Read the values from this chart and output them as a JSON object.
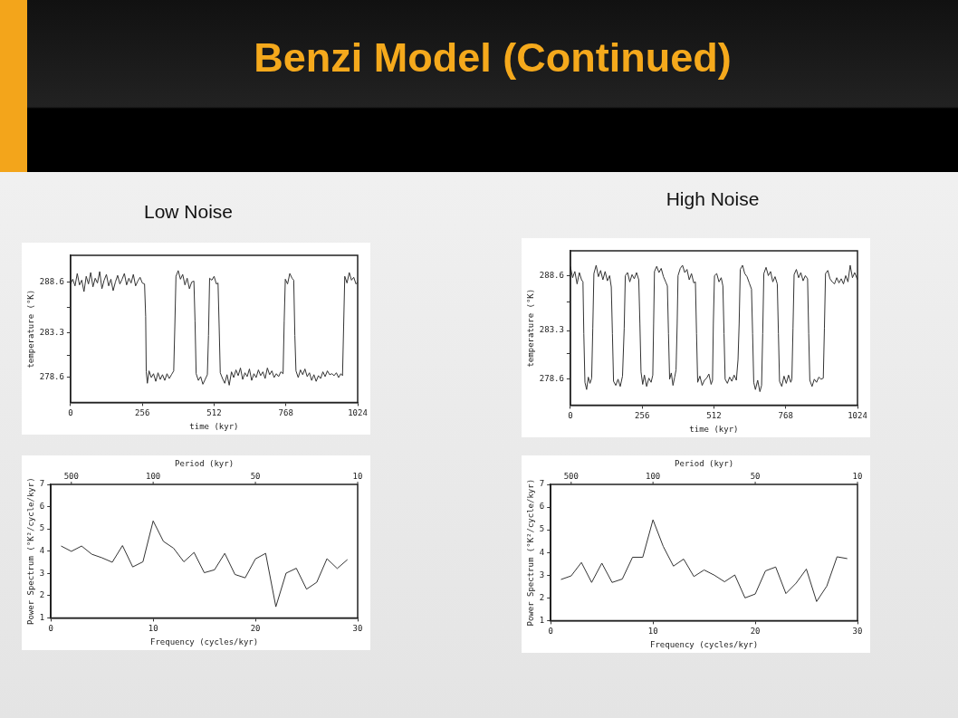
{
  "chart_data": [
    {
      "type": "line",
      "title": "Benzi Model (Continued)",
      "subtitle": "Low Noise",
      "xlabel": "time (kyr)",
      "ylabel": "temperature (°K)",
      "color": "#333333",
      "xlim": [
        0,
        1024
      ],
      "xticks": [
        0,
        256,
        512,
        768,
        1024
      ],
      "ylim": [
        276.0,
        291.4
      ],
      "yticks": [
        278.6,
        {
          "value": 280.95,
          "label": null
        },
        283.3,
        {
          "value": 285.95,
          "label": null
        },
        288.6
      ],
      "x": [
        0,
        8,
        16,
        24,
        32,
        40,
        48,
        56,
        64,
        72,
        80,
        88,
        96,
        104,
        112,
        120,
        128,
        136,
        144,
        152,
        160,
        168,
        176,
        184,
        192,
        200,
        208,
        216,
        224,
        232,
        240,
        248,
        256,
        264,
        268,
        270,
        274,
        280,
        288,
        296,
        304,
        312,
        320,
        328,
        336,
        344,
        352,
        360,
        368,
        372,
        376,
        384,
        392,
        400,
        408,
        416,
        424,
        432,
        440,
        444,
        448,
        456,
        464,
        472,
        480,
        488,
        492,
        496,
        504,
        512,
        520,
        526,
        530,
        534,
        542,
        550,
        558,
        566,
        574,
        582,
        590,
        598,
        606,
        614,
        622,
        630,
        638,
        646,
        654,
        662,
        670,
        678,
        686,
        694,
        702,
        710,
        718,
        726,
        734,
        742,
        750,
        758,
        762,
        766,
        774,
        782,
        790,
        796,
        800,
        804,
        812,
        820,
        828,
        836,
        844,
        852,
        860,
        868,
        876,
        884,
        892,
        900,
        908,
        916,
        924,
        932,
        940,
        948,
        956,
        964,
        970,
        974,
        978,
        986,
        994,
        1002,
        1010,
        1018,
        1024
      ],
      "values": [
        288.4,
        288.9,
        288.2,
        289.5,
        288.3,
        288.8,
        287.6,
        289.2,
        288.4,
        289.6,
        288.1,
        289.0,
        288.5,
        289.7,
        287.9,
        288.8,
        289.4,
        288.2,
        288.9,
        287.7,
        288.6,
        289.3,
        288.4,
        288.9,
        289.5,
        288.3,
        289.0,
        288.5,
        289.4,
        288.2,
        288.7,
        289.1,
        288.5,
        288.4,
        285.0,
        279.2,
        278.0,
        279.3,
        278.6,
        279.0,
        278.2,
        279.1,
        278.4,
        278.9,
        278.3,
        279.0,
        278.5,
        278.9,
        279.3,
        284.0,
        289.2,
        289.8,
        288.9,
        289.4,
        288.3,
        289.0,
        287.9,
        288.6,
        288.7,
        284.5,
        279.0,
        278.3,
        278.7,
        277.9,
        278.4,
        278.9,
        283.0,
        289.0,
        288.8,
        289.2,
        288.4,
        288.5,
        284.0,
        279.1,
        278.5,
        278.0,
        278.9,
        277.8,
        279.2,
        278.6,
        279.4,
        278.8,
        279.6,
        278.4,
        279.1,
        278.7,
        279.5,
        278.3,
        279.0,
        278.6,
        279.4,
        278.8,
        279.2,
        278.5,
        279.6,
        278.9,
        279.3,
        278.6,
        279.0,
        278.7,
        279.2,
        279.0,
        284.5,
        288.9,
        288.4,
        289.5,
        289.0,
        288.8,
        283.0,
        279.3,
        278.6,
        279.4,
        278.9,
        279.5,
        278.7,
        279.1,
        278.3,
        278.9,
        278.2,
        278.8,
        278.5,
        279.2,
        278.7,
        279.3,
        278.9,
        279.0,
        278.8,
        279.1,
        278.6,
        279.0,
        278.8,
        284.0,
        289.2,
        288.5,
        289.6,
        288.8,
        289.1,
        288.4,
        288.6
      ]
    },
    {
      "type": "line",
      "subtitle": "High Noise",
      "xlabel": "time (kyr)",
      "ylabel": "temperature (°K)",
      "color": "#333333",
      "xlim": [
        0,
        1024
      ],
      "xticks": [
        0,
        256,
        512,
        768,
        1024
      ],
      "ylim": [
        276.1,
        291.0
      ],
      "yticks": [
        278.6,
        {
          "value": 281.1,
          "label": null
        },
        283.3,
        {
          "value": 286.1,
          "label": null
        },
        288.6
      ],
      "x": [
        0,
        8,
        16,
        24,
        32,
        40,
        45,
        48,
        52,
        58,
        64,
        70,
        76,
        80,
        84,
        92,
        100,
        108,
        116,
        124,
        132,
        140,
        146,
        150,
        154,
        162,
        170,
        178,
        186,
        192,
        196,
        204,
        212,
        220,
        228,
        236,
        244,
        248,
        252,
        258,
        264,
        272,
        280,
        288,
        294,
        297,
        300,
        308,
        316,
        324,
        332,
        340,
        346,
        350,
        354,
        360,
        366,
        372,
        377,
        381,
        384,
        392,
        400,
        408,
        416,
        424,
        432,
        440,
        446,
        450,
        454,
        462,
        470,
        478,
        486,
        494,
        502,
        507,
        510,
        514,
        522,
        530,
        538,
        544,
        548,
        552,
        560,
        568,
        576,
        584,
        592,
        598,
        602,
        606,
        614,
        622,
        630,
        638,
        646,
        650,
        654,
        660,
        668,
        676,
        682,
        686,
        690,
        698,
        706,
        714,
        722,
        730,
        738,
        742,
        746,
        754,
        762,
        770,
        778,
        786,
        790,
        794,
        798,
        806,
        814,
        822,
        830,
        838,
        846,
        850,
        854,
        862,
        870,
        878,
        886,
        894,
        902,
        906,
        910,
        918,
        926,
        934,
        942,
        950,
        958,
        966,
        974,
        982,
        990,
        998,
        1006,
        1014,
        1024
      ],
      "values": [
        289.5,
        288.4,
        289.0,
        287.8,
        288.9,
        288.2,
        288.0,
        283.0,
        278.3,
        277.6,
        278.8,
        278.2,
        278.7,
        283.5,
        288.8,
        289.6,
        288.5,
        289.1,
        288.2,
        289.0,
        288.1,
        288.6,
        287.5,
        283.0,
        278.4,
        278.0,
        278.6,
        277.9,
        278.9,
        283.5,
        288.6,
        288.9,
        288.0,
        288.7,
        288.3,
        288.9,
        288.2,
        284.0,
        279.3,
        278.1,
        279.0,
        277.9,
        278.7,
        278.3,
        279.0,
        284.0,
        289.0,
        289.5,
        288.9,
        289.3,
        288.5,
        288.0,
        287.6,
        283.0,
        278.6,
        279.2,
        278.0,
        278.8,
        279.5,
        284.0,
        288.6,
        289.3,
        289.6,
        288.9,
        289.2,
        288.2,
        288.8,
        287.9,
        288.0,
        283.0,
        278.3,
        278.9,
        278.0,
        278.5,
        278.7,
        279.1,
        278.1,
        278.5,
        284.0,
        288.6,
        288.8,
        288.0,
        288.4,
        287.6,
        283.0,
        278.6,
        278.2,
        278.8,
        278.4,
        279.0,
        278.5,
        280.5,
        284.0,
        289.2,
        289.6,
        288.8,
        288.5,
        287.9,
        287.3,
        283.0,
        278.3,
        277.6,
        278.5,
        277.4,
        278.0,
        283.0,
        288.8,
        289.4,
        288.6,
        289.0,
        288.0,
        288.5,
        287.8,
        283.0,
        278.4,
        277.9,
        278.9,
        278.2,
        279.0,
        278.3,
        278.6,
        283.5,
        288.7,
        289.2,
        288.4,
        288.9,
        288.1,
        288.6,
        288.3,
        283.0,
        278.5,
        277.9,
        278.6,
        278.3,
        278.8,
        278.6,
        278.7,
        283.5,
        288.8,
        289.1,
        288.3,
        288.0,
        287.8,
        288.4,
        287.9,
        288.3,
        287.8,
        288.6,
        288.0,
        289.6,
        288.4,
        288.9,
        288.2
      ]
    },
    {
      "type": "line",
      "xlabel": "Frequency (cycles/kyr)",
      "ylabel": "Power Spectrum (°K²/cycle/kyr)",
      "x2label": "Period (kyr)",
      "color": "#333333",
      "xlim": [
        0,
        30
      ],
      "xticks": [
        0,
        10,
        20,
        30
      ],
      "annotations": [
        "500",
        "100",
        "50",
        "10"
      ],
      "ylim": [
        1,
        7
      ],
      "yticks": [
        1,
        2,
        3,
        4,
        5,
        6,
        7
      ],
      "x": [
        1,
        2,
        3,
        4,
        5,
        6,
        7,
        8,
        9,
        10,
        11,
        12,
        13,
        14,
        15,
        16,
        17,
        18,
        19,
        20,
        21,
        22,
        23,
        24,
        25,
        26,
        27,
        28,
        29
      ],
      "values": [
        4.23,
        3.99,
        4.23,
        3.86,
        3.7,
        3.5,
        4.25,
        3.29,
        3.52,
        5.36,
        4.44,
        4.13,
        3.52,
        3.94,
        3.03,
        3.16,
        3.9,
        2.95,
        2.8,
        3.65,
        3.9,
        1.5,
        3.01,
        3.23,
        2.29,
        2.6,
        3.66,
        3.22,
        3.62
      ]
    },
    {
      "type": "line",
      "xlabel": "Frequency (cycles/kyr)",
      "ylabel": "Power Spectrum (°K²/cycle/kyr)",
      "x2label": "Period (kyr)",
      "color": "#333333",
      "xlim": [
        0,
        30
      ],
      "xticks": [
        0,
        10,
        20,
        30
      ],
      "annotations": [
        "500",
        "100",
        "50",
        "10"
      ],
      "ylim": [
        1,
        7
      ],
      "yticks": [
        1,
        2,
        3,
        4,
        5,
        6,
        7
      ],
      "x": [
        1,
        2,
        3,
        4,
        5,
        6,
        7,
        8,
        9,
        10,
        11,
        12,
        13,
        14,
        15,
        16,
        17,
        18,
        19,
        20,
        21,
        22,
        23,
        24,
        25,
        26,
        27,
        28,
        29
      ],
      "values": [
        2.81,
        2.97,
        3.56,
        2.68,
        3.53,
        2.68,
        2.83,
        3.79,
        3.79,
        5.44,
        4.27,
        3.4,
        3.71,
        2.94,
        3.23,
        3.0,
        2.71,
        3.01,
        2.0,
        2.17,
        3.19,
        3.36,
        2.19,
        2.65,
        3.27,
        1.84,
        2.52,
        3.81,
        3.73
      ]
    }
  ]
}
